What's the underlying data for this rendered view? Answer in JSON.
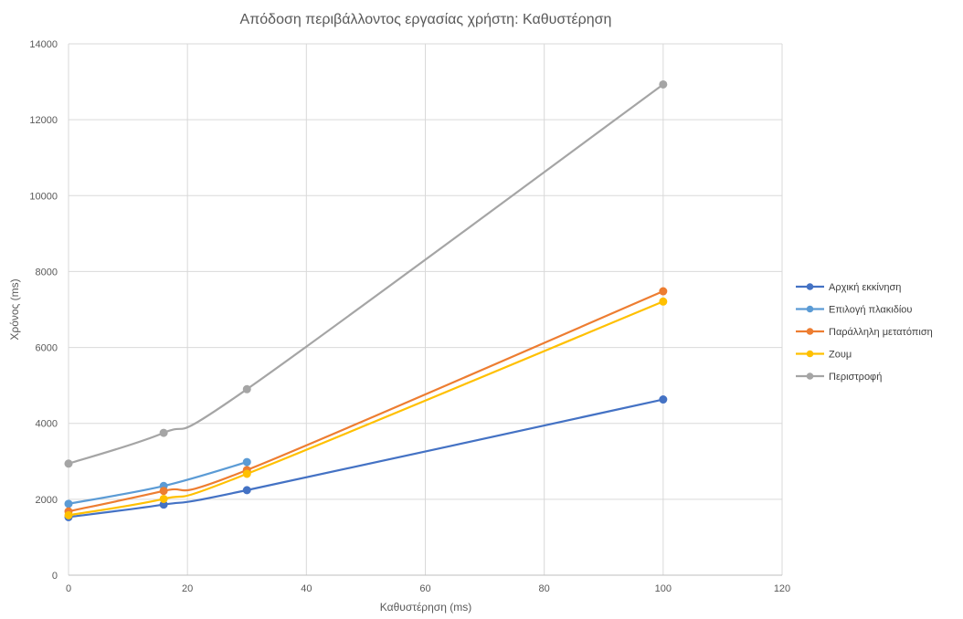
{
  "chart_data": {
    "type": "line",
    "title": "Απόδοση περιβάλλοντος εργασίας χρήστη: Καθυστέρηση",
    "xlabel": "Καθυστέρηση (ms)",
    "ylabel": "Χρόνος (ms)",
    "xlim": [
      0,
      120
    ],
    "ylim": [
      0,
      14000
    ],
    "xticks": [
      "0",
      "20",
      "40",
      "60",
      "80",
      "100",
      "120"
    ],
    "yticks": [
      "0",
      "2000",
      "4000",
      "6000",
      "8000",
      "10000",
      "12000",
      "14000"
    ],
    "grid": true,
    "legend_position": "right",
    "smooth": true,
    "series": [
      {
        "name": "Αρχική εκκίνηση",
        "color": "#4472C4",
        "x": [
          0,
          16,
          30,
          100
        ],
        "y": [
          1530,
          1860,
          2240,
          4630
        ]
      },
      {
        "name": "Επιλογή πλακιδίου",
        "color": "#5B9BD5",
        "x": [
          0,
          16,
          30
        ],
        "y": [
          1880,
          2350,
          2980
        ]
      },
      {
        "name": "Παράλληλη μετατόπιση",
        "color": "#ED7D31",
        "x": [
          0,
          16,
          30,
          100
        ],
        "y": [
          1680,
          2220,
          2770,
          7480
        ]
      },
      {
        "name": "Ζουμ",
        "color": "#FFC000",
        "x": [
          0,
          16,
          30,
          100
        ],
        "y": [
          1580,
          2010,
          2670,
          7210
        ]
      },
      {
        "name": "Περιστροφή",
        "color": "#A5A5A5",
        "x": [
          0,
          16,
          30,
          100
        ],
        "y": [
          2940,
          3750,
          4900,
          12930
        ]
      }
    ]
  }
}
